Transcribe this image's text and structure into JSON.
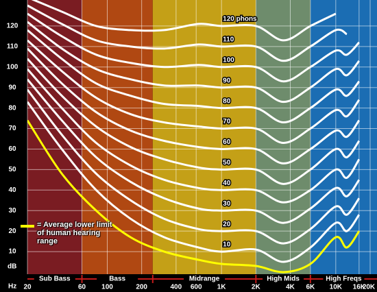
{
  "chart_data": {
    "type": "line",
    "x_label": "Hz",
    "y_label": "dB",
    "log_x": true,
    "grid": true,
    "xlim": [
      20,
      20000
    ],
    "ylim": [
      0,
      130
    ],
    "yticks": [
      10,
      20,
      30,
      40,
      50,
      60,
      70,
      80,
      90,
      100,
      110,
      120
    ],
    "xticks": [
      20,
      60,
      100,
      200,
      400,
      600,
      {
        "value": 1000,
        "label": "1K"
      },
      {
        "value": 2000,
        "label": "2K"
      },
      {
        "value": 4000,
        "label": "4K"
      },
      {
        "value": 6000,
        "label": "6K"
      },
      {
        "value": 10000,
        "label": "10K"
      },
      {
        "value": 16000,
        "label": "16K"
      },
      {
        "value": 20000,
        "label": "20K"
      }
    ],
    "bands": [
      {
        "name": "Sub Bass",
        "range": [
          20,
          60
        ],
        "color": "#7a1c22"
      },
      {
        "name": "Bass",
        "range": [
          60,
          250
        ],
        "color": "#b04812"
      },
      {
        "name": "Midrange",
        "range": [
          250,
          2000
        ],
        "color": "#c4a017"
      },
      {
        "name": "High Mids",
        "range": [
          2000,
          6000
        ],
        "color": "#6e8c6c"
      },
      {
        "name": "High Freqs",
        "range": [
          6000,
          20000
        ],
        "color": "#1b6db3"
      }
    ],
    "x": [
      20,
      40,
      80,
      160,
      315,
      630,
      1000,
      2000,
      3500,
      6000,
      10000,
      12500,
      16000
    ],
    "series": [
      {
        "name": "= Average lower limit of human hearing range",
        "color": "#ffff00",
        "values": [
          74,
          48,
          30,
          17,
          10,
          6,
          4,
          3,
          0,
          4,
          17,
          12,
          20
        ]
      },
      {
        "name": "10",
        "color": "#ffffff",
        "values": [
          83,
          60,
          40,
          26,
          17,
          12,
          10,
          11,
          5,
          12,
          24,
          20,
          28
        ]
      },
      {
        "name": "20",
        "color": "#ffffff",
        "values": [
          89,
          67,
          48,
          35,
          26,
          21,
          20,
          20,
          14,
          21,
          32,
          28,
          36
        ]
      },
      {
        "name": "30",
        "color": "#ffffff",
        "values": [
          94,
          74,
          56,
          44,
          36,
          31,
          30,
          30,
          24,
          31,
          41,
          37,
          45
        ]
      },
      {
        "name": "40",
        "color": "#ffffff",
        "values": [
          99,
          80,
          63,
          52,
          45,
          41,
          40,
          40,
          34,
          40,
          50,
          46,
          55
        ]
      },
      {
        "name": "50",
        "color": "#ffffff",
        "values": [
          104,
          86,
          71,
          61,
          55,
          51,
          50,
          50,
          43,
          50,
          60,
          56,
          64
        ]
      },
      {
        "name": "60",
        "color": "#ffffff",
        "values": [
          109,
          92,
          78,
          69,
          64,
          61,
          60,
          60,
          53,
          60,
          69,
          66,
          74
        ]
      },
      {
        "name": "70",
        "color": "#ffffff",
        "values": [
          113,
          98,
          85,
          77,
          73,
          71,
          70,
          70,
          63,
          70,
          79,
          76,
          84
        ]
      },
      {
        "name": "80",
        "color": "#ffffff",
        "values": [
          118,
          104,
          92,
          86,
          82,
          81,
          80,
          80,
          73,
          80,
          89,
          86,
          93
        ]
      },
      {
        "name": "90",
        "color": "#ffffff",
        "values": [
          122,
          109,
          99,
          94,
          91,
          91,
          90,
          90,
          83,
          90,
          99,
          96,
          103
        ]
      },
      {
        "name": "100",
        "color": "#ffffff",
        "values": [
          126,
          115,
          106,
          102,
          100,
          101,
          100,
          100,
          93,
          100,
          108,
          106,
          112
        ]
      },
      {
        "name": "110",
        "color": "#ffffff",
        "values": [
          130,
          121,
          113,
          110,
          109,
          111,
          110,
          110,
          103,
          110,
          118,
          116,
          null
        ]
      },
      {
        "name": "120 phons",
        "color": "#ffffff",
        "values": [
          134,
          127,
          120,
          118,
          118,
          121,
          120,
          120,
          113,
          120,
          126,
          null,
          null
        ]
      }
    ]
  }
}
